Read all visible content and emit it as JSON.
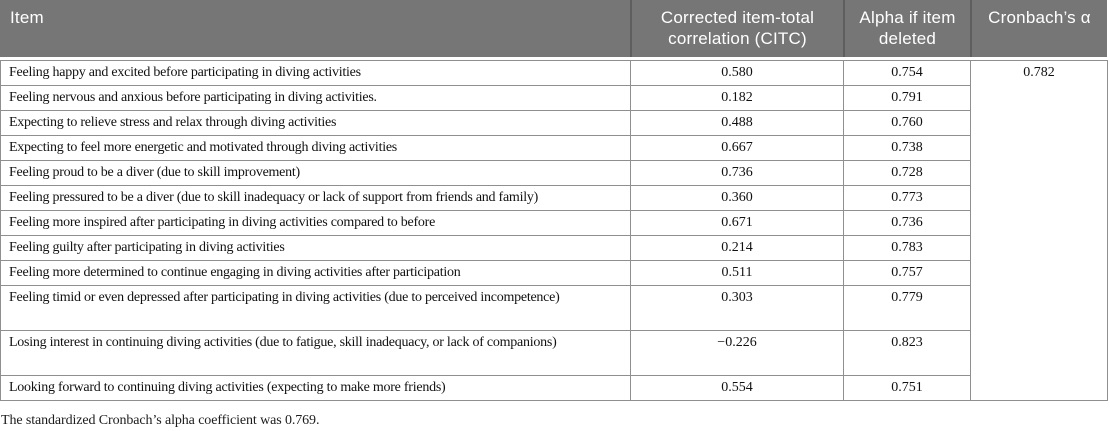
{
  "table": {
    "header": {
      "item": "Item",
      "citc": "Corrected item-total correlation (CITC)",
      "alpha_if_deleted": "Alpha if item deleted",
      "cronbach": "Cronbach’s α"
    },
    "cronbach_alpha_value": "0.782",
    "rows": [
      {
        "item": "Feeling happy and excited before participating in diving activities",
        "citc": "0.580",
        "alpha": "0.754"
      },
      {
        "item": "Feeling nervous and anxious before participating in diving activities.",
        "citc": "0.182",
        "alpha": "0.791"
      },
      {
        "item": "Expecting to relieve stress and relax through diving activities",
        "citc": "0.488",
        "alpha": "0.760"
      },
      {
        "item": "Expecting to feel more energetic and motivated through diving activities",
        "citc": "0.667",
        "alpha": "0.738"
      },
      {
        "item": "Feeling proud to be a diver (due to skill improvement)",
        "citc": "0.736",
        "alpha": "0.728"
      },
      {
        "item": "Feeling pressured to be a diver (due to skill inadequacy or lack of support from friends and family)",
        "citc": "0.360",
        "alpha": "0.773"
      },
      {
        "item": "Feeling more inspired after participating in diving activities compared to before",
        "citc": "0.671",
        "alpha": "0.736"
      },
      {
        "item": "Feeling guilty after participating in diving activities",
        "citc": "0.214",
        "alpha": "0.783"
      },
      {
        "item": "Feeling more determined to continue engaging in diving activities after participation",
        "citc": "0.511",
        "alpha": "0.757"
      },
      {
        "item": "Feeling timid or even depressed after participating in diving activities (due to perceived incompetence)",
        "citc": "0.303",
        "alpha": "0.779"
      },
      {
        "item": "Losing interest in continuing diving activities (due to fatigue, skill inadequacy, or lack of companions)",
        "citc": "−0.226",
        "alpha": "0.823"
      },
      {
        "item": "Looking forward to continuing diving activities (expecting to make more friends)",
        "citc": "0.554",
        "alpha": "0.751"
      }
    ],
    "footnote": "The standardized Cronbach’s alpha coefficient was 0.769."
  },
  "colors": {
    "header_bg": "#767676",
    "header_text": "#ffffff",
    "header_separator": "#5e5e5e",
    "cell_border": "#8f8f8f",
    "body_text": "#111111"
  }
}
